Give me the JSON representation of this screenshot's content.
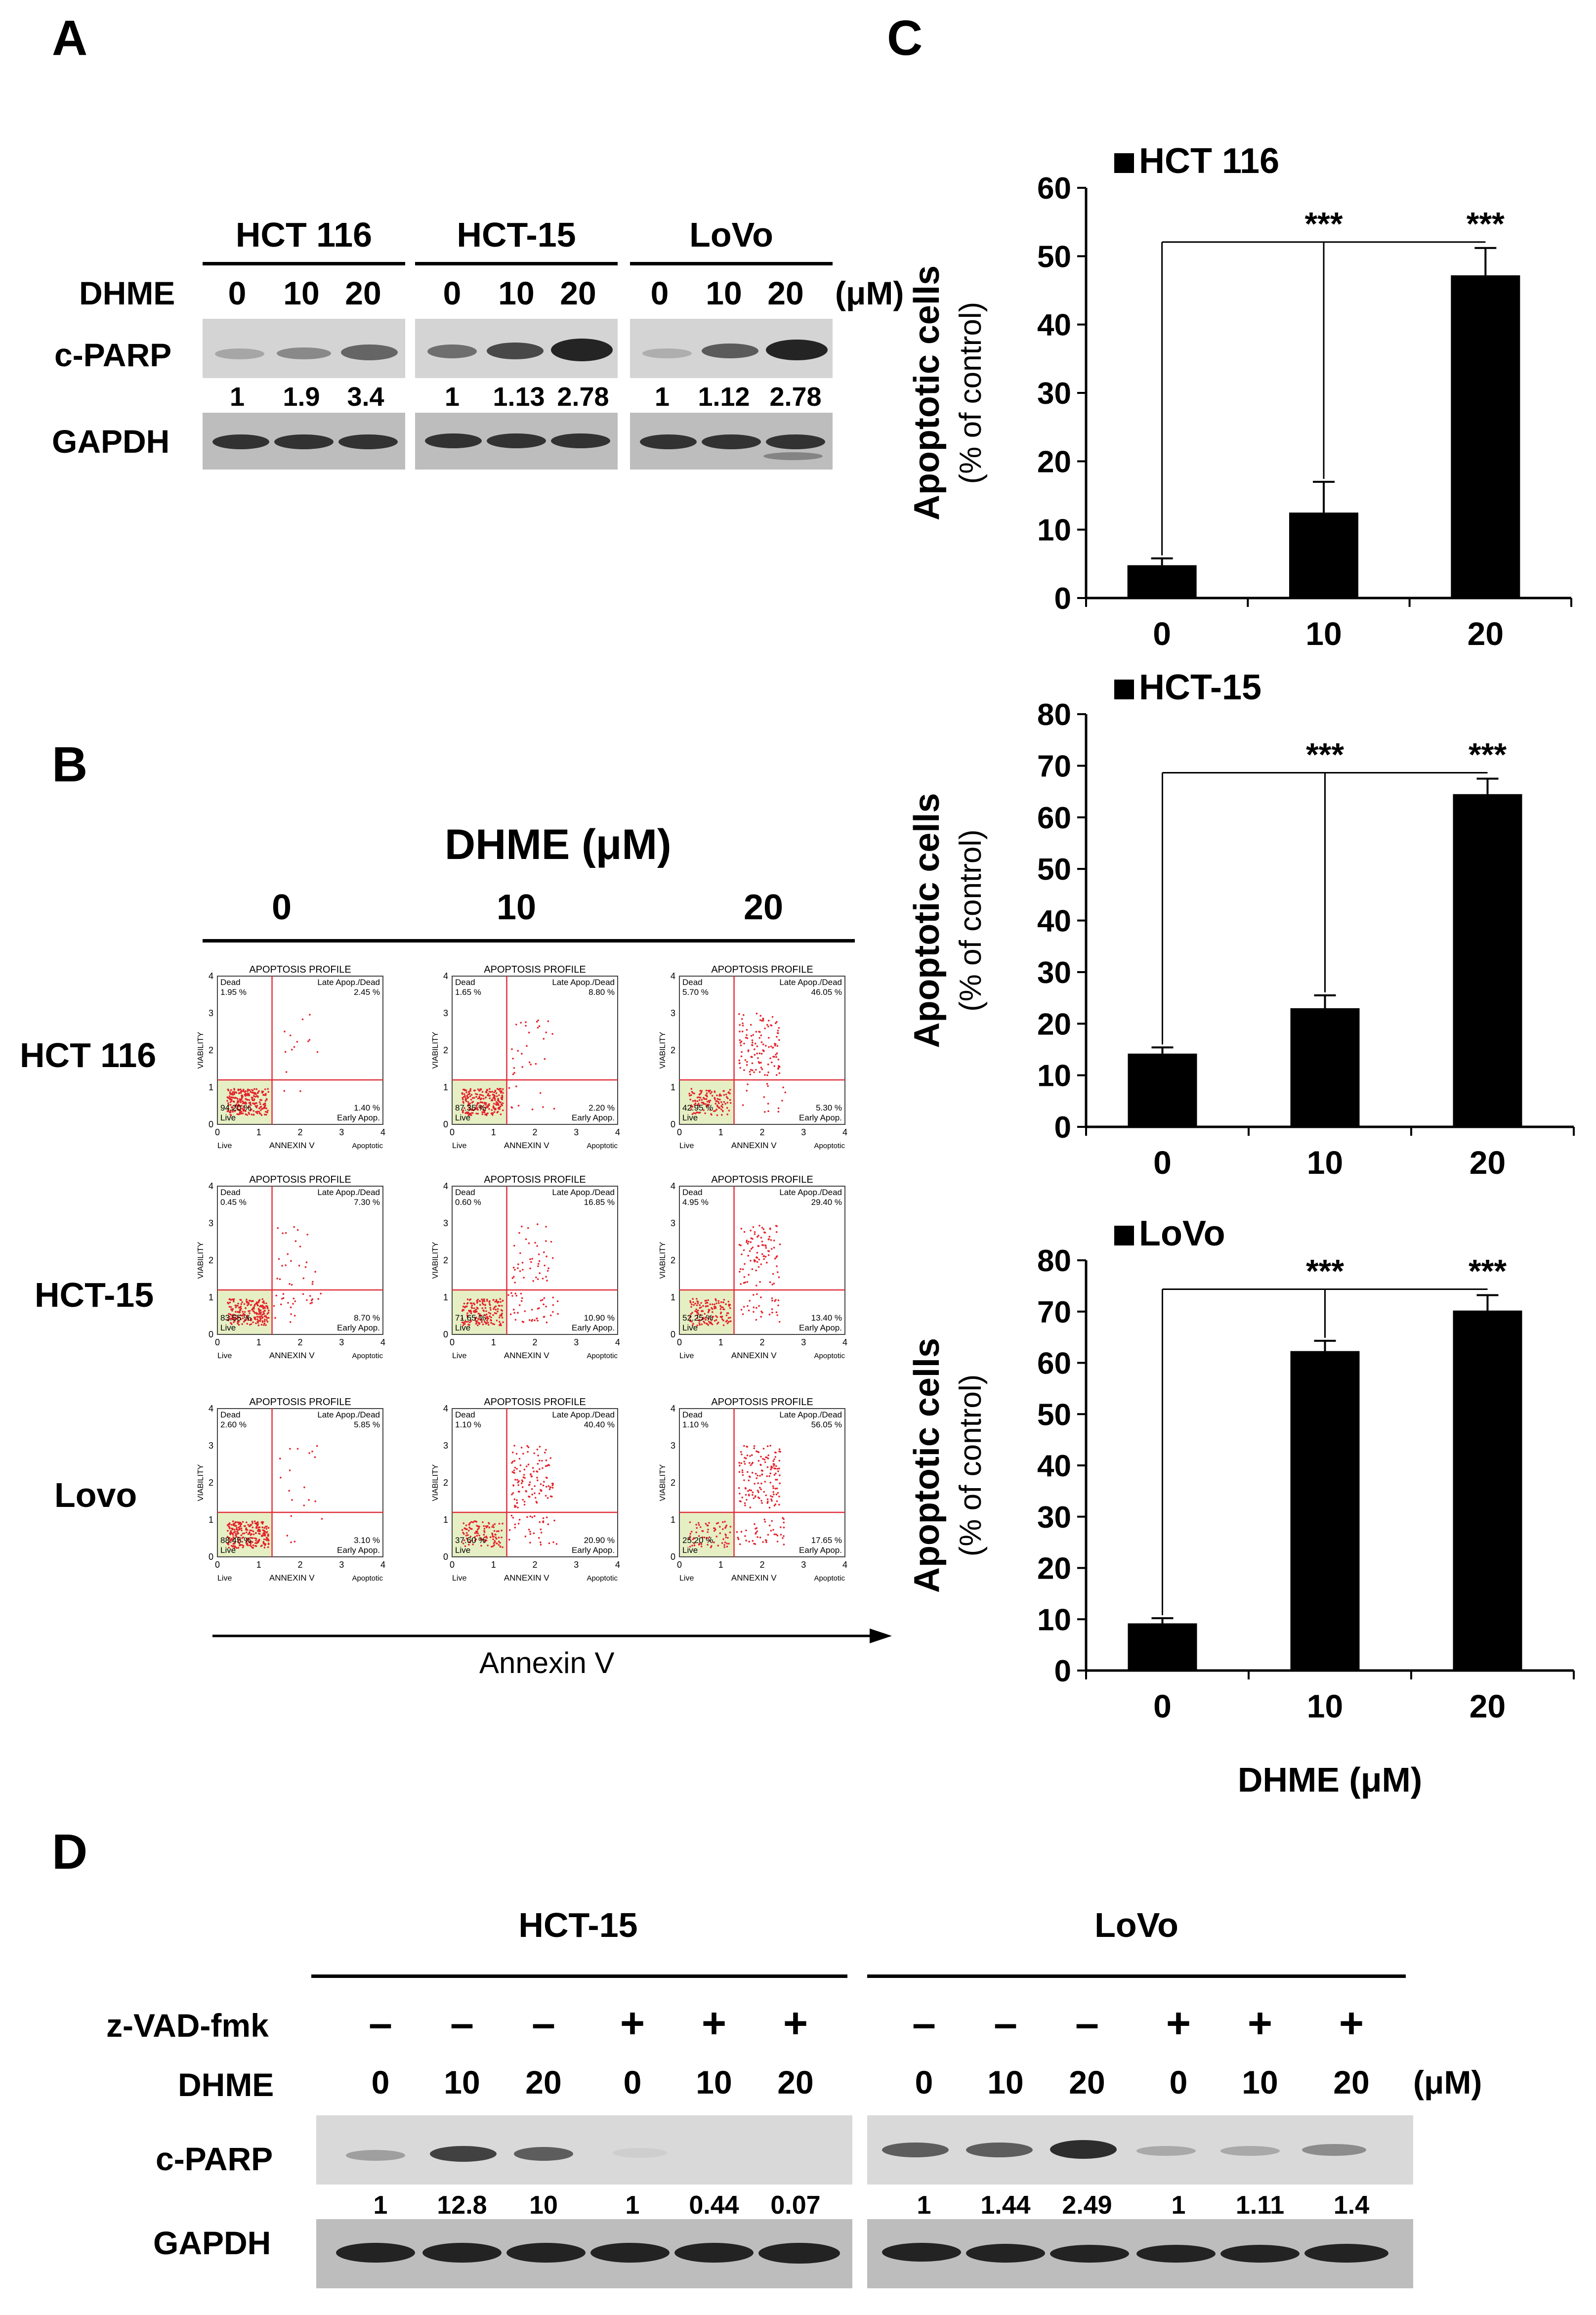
{
  "panels": {
    "A": "A",
    "B": "B",
    "C": "C",
    "D": "D"
  },
  "panelA": {
    "cell_lines": [
      "HCT 116",
      "HCT-15",
      "LoVo"
    ],
    "treatment_label": "DHME",
    "doses": [
      "0",
      "10",
      "20"
    ],
    "unit": "(μM)",
    "row_labels": {
      "cparp": "c-PARP",
      "gapdh": "GAPDH"
    },
    "ratios": [
      [
        "1",
        "1.9",
        "3.4"
      ],
      [
        "1",
        "1.13",
        "2.78"
      ],
      [
        "1",
        "1.12",
        "2.78"
      ]
    ]
  },
  "panelB": {
    "title": "DHME (μM)",
    "doses": [
      "0",
      "10",
      "20"
    ],
    "rows": [
      "HCT 116",
      "HCT-15",
      "Lovo"
    ],
    "xaxis": "Annexin V",
    "plot_title": "APOPTOSIS PROFILE",
    "q_dead": "Dead",
    "q_late": "Late Apop./Dead",
    "q_early": "Early Apop.",
    "q_live": "Live",
    "ylab": "VIABILITY",
    "xlab": "ANNEXIN V",
    "xlab2": "Apoptotic",
    "ticks_y": [
      "0",
      "1",
      "2",
      "3",
      "4"
    ],
    "ticks_x": [
      "0",
      "1",
      "2",
      "3",
      "4"
    ],
    "plots": [
      [
        {
          "dead": "1.95 %",
          "late": "2.45 %",
          "early": "1.40 %",
          "live": "94.20 %"
        },
        {
          "dead": "1.65 %",
          "late": "8.80 %",
          "early": "2.20 %",
          "live": "87.35 %"
        },
        {
          "dead": "5.70 %",
          "late": "46.05 %",
          "early": "5.30 %",
          "live": "42.95 %"
        }
      ],
      [
        {
          "dead": "0.45 %",
          "late": "7.30 %",
          "early": "8.70 %",
          "live": "83.55 %"
        },
        {
          "dead": "0.60 %",
          "late": "16.85 %",
          "early": "10.90 %",
          "live": "71.65 %"
        },
        {
          "dead": "4.95 %",
          "late": "29.40 %",
          "early": "13.40 %",
          "live": "52.25 %"
        }
      ],
      [
        {
          "dead": "2.60 %",
          "late": "5.85 %",
          "early": "3.10 %",
          "live": "88.45 %"
        },
        {
          "dead": "1.10 %",
          "late": "40.40 %",
          "early": "20.90 %",
          "live": "37.60 %"
        },
        {
          "dead": "1.10 %",
          "late": "56.05 %",
          "early": "17.65 %",
          "live": "25.20 %"
        }
      ]
    ]
  },
  "chart_data": [
    {
      "type": "bar",
      "title": "HCT 116",
      "categories": [
        "0",
        "10",
        "20"
      ],
      "values": [
        4.8,
        12.5,
        47.2
      ],
      "errors": [
        1.0,
        4.5,
        4.0
      ],
      "ylabel": "Apoptotic cells",
      "ylabel2": "(% of control)",
      "xlabel": "",
      "ylim": [
        0,
        60
      ],
      "yticks": [
        0,
        10,
        20,
        30,
        40,
        50,
        60
      ],
      "significance": [
        "",
        "***",
        "***"
      ]
    },
    {
      "type": "bar",
      "title": "HCT-15",
      "categories": [
        "0",
        "10",
        "20"
      ],
      "values": [
        14.2,
        23.0,
        64.5
      ],
      "errors": [
        1.2,
        2.5,
        3.0
      ],
      "ylabel": "Apoptotic cells",
      "ylabel2": "(% of control)",
      "xlabel": "",
      "ylim": [
        0,
        80
      ],
      "yticks": [
        0,
        10,
        20,
        30,
        40,
        50,
        60,
        70,
        80
      ],
      "significance": [
        "",
        "***",
        "***"
      ]
    },
    {
      "type": "bar",
      "title": "LoVo",
      "categories": [
        "0",
        "10",
        "20"
      ],
      "values": [
        9.2,
        62.3,
        70.2
      ],
      "errors": [
        1.0,
        2.0,
        3.0
      ],
      "ylabel": "Apoptotic cells",
      "ylabel2": "(% of control)",
      "xlabel": "DHME (μM)",
      "ylim": [
        0,
        80
      ],
      "yticks": [
        0,
        10,
        20,
        30,
        40,
        50,
        60,
        70,
        80
      ],
      "significance": [
        "",
        "***",
        "***"
      ]
    }
  ],
  "panelD": {
    "groups": [
      "HCT-15",
      "LoVo"
    ],
    "zvad_label": "z-VAD-fmk",
    "dhme_label": "DHME",
    "unit": "(μM)",
    "zvad": [
      "–",
      "–",
      "–",
      "+",
      "+",
      "+"
    ],
    "doses": [
      "0",
      "10",
      "20",
      "0",
      "10",
      "20"
    ],
    "row_labels": {
      "cparp": "c-PARP",
      "gapdh": "GAPDH"
    },
    "ratios": [
      [
        "1",
        "12.8",
        "10",
        "1",
        "0.44",
        "0.07"
      ],
      [
        "1",
        "1.44",
        "2.49",
        "1",
        "1.11",
        "1.4"
      ]
    ]
  }
}
